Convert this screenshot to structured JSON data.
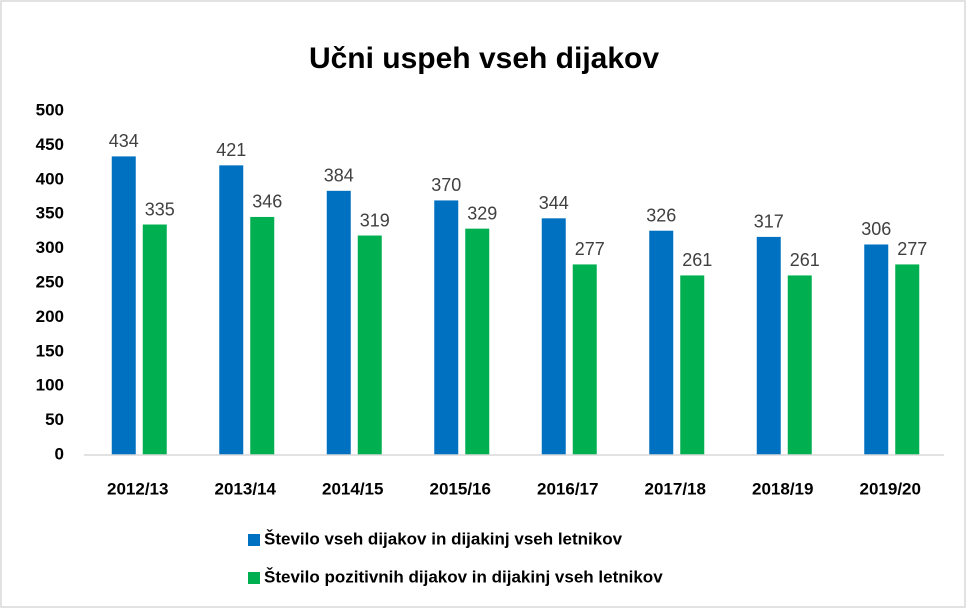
{
  "chart_data": {
    "type": "bar",
    "title": "Učni uspeh vseh dijakov",
    "categories": [
      "2012/13",
      "2013/14",
      "2014/15",
      "2015/16",
      "2016/17",
      "2017/18",
      "2018/19",
      "2019/20"
    ],
    "series": [
      {
        "name": "Število vseh dijakov in dijakinj vseh letnikov",
        "color": "#0070c0",
        "values": [
          434,
          421,
          384,
          370,
          344,
          326,
          317,
          306
        ]
      },
      {
        "name": "Število pozitivnih dijakov in dijakinj vseh letnikov",
        "color": "#00b050",
        "values": [
          335,
          346,
          319,
          329,
          277,
          261,
          261,
          277
        ]
      }
    ],
    "ylim": [
      0,
      500
    ],
    "yticks": [
      0,
      50,
      100,
      150,
      200,
      250,
      300,
      350,
      400,
      450,
      500
    ],
    "grid": false,
    "legend": "bottom"
  }
}
